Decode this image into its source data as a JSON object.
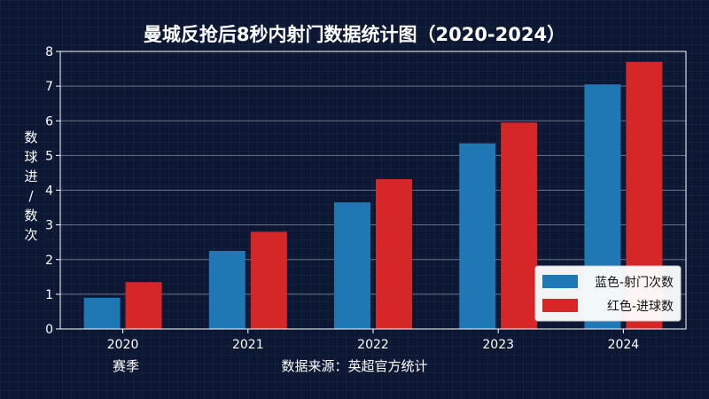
{
  "chart_data": {
    "type": "bar",
    "title": "曼城反抢后8秒内射门数据统计图（2020-2024）",
    "xlabel": "赛季",
    "source_note": "数据来源：英超官方统计",
    "ylabel": "数球进/数次",
    "categories": [
      "2020",
      "2021",
      "2022",
      "2023",
      "2024"
    ],
    "series": [
      {
        "name": "蓝色-射门次数",
        "values": [
          0.9,
          2.25,
          3.65,
          5.35,
          7.05
        ]
      },
      {
        "name": "红色-进球数",
        "values": [
          1.35,
          2.8,
          4.32,
          5.95,
          7.7
        ]
      }
    ],
    "ylim": [
      0,
      8
    ],
    "yticks": [
      0,
      1,
      2,
      3,
      4,
      5,
      6,
      7,
      8
    ],
    "grid": true,
    "legend_position": "bottom-right",
    "colors": {
      "series1": "#1f77b4",
      "series2": "#d62728",
      "background": "#0c1733",
      "grid": "#8d93a5",
      "text": "#ffffff"
    }
  }
}
